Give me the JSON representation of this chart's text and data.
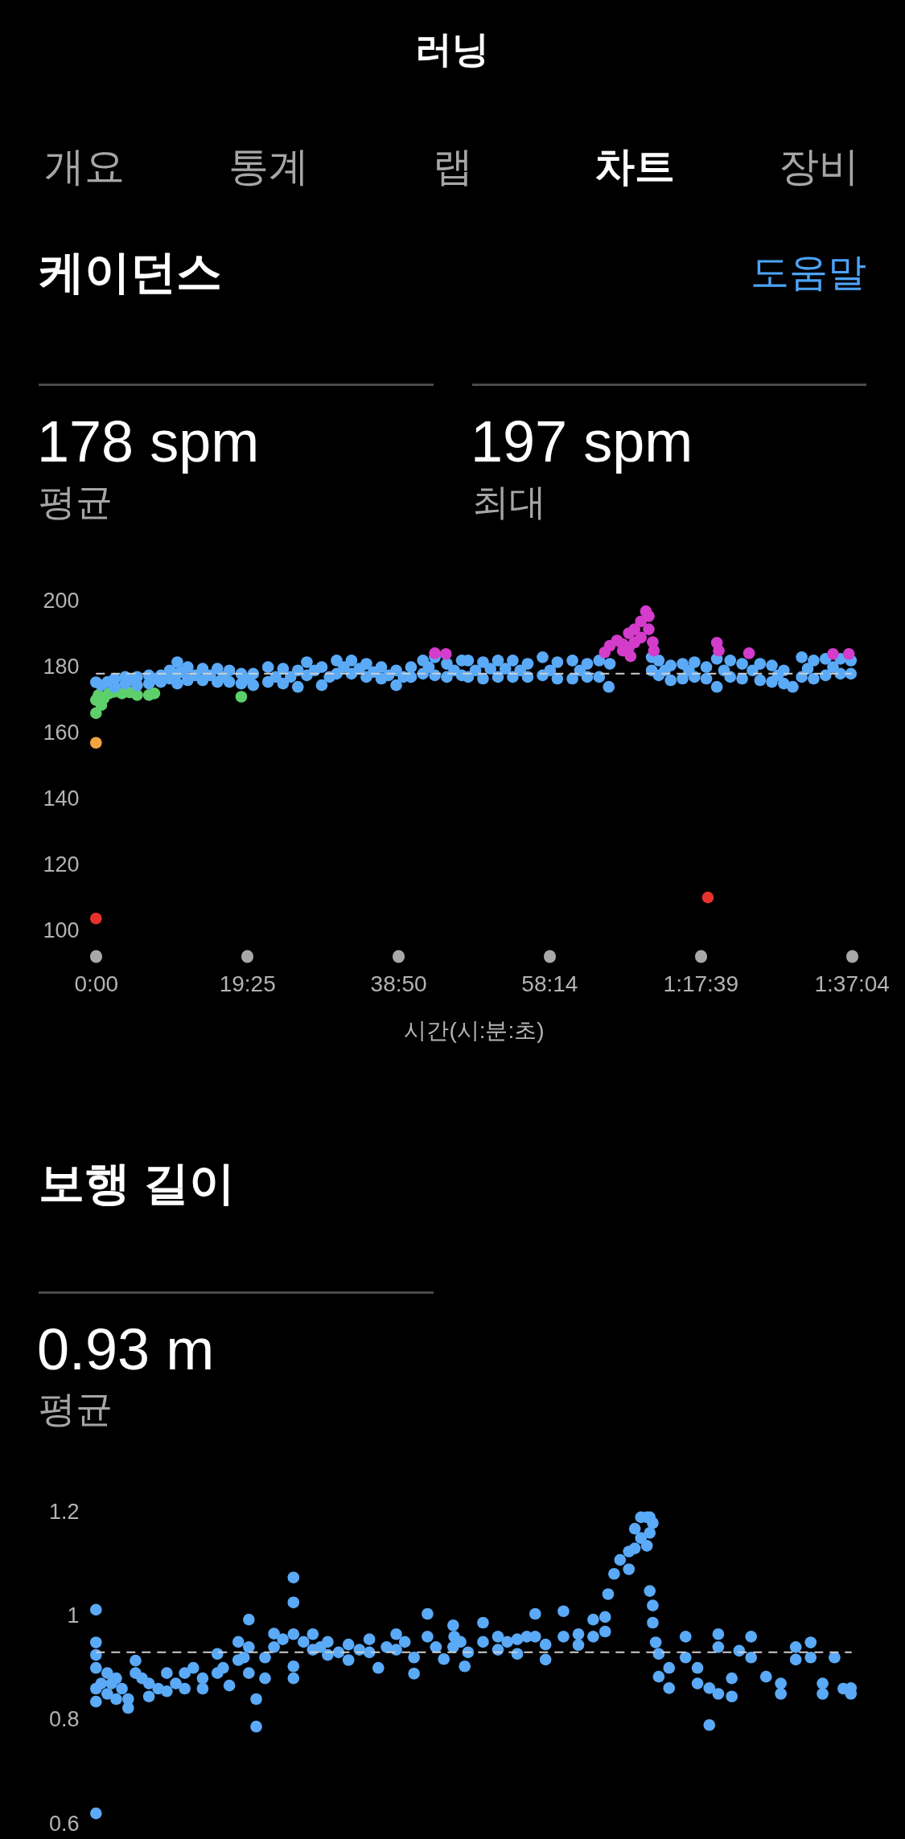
{
  "chart_data": [
    {
      "type": "other",
      "title": "러닝",
      "annotations": [
        "개요",
        "통계",
        "랩",
        "차트",
        "장비"
      ]
    },
    {
      "type": "scatter",
      "title": "케이던스",
      "annotations": [
        "도움말",
        "178 spm",
        "평균",
        "197 spm",
        "최대"
      ],
      "xlabel": "시간(시:분:초)",
      "xlim": [
        0,
        5824
      ],
      "xticks": [
        {
          "value": 0,
          "label": "0:00"
        },
        {
          "value": 1165,
          "label": "19:25"
        },
        {
          "value": 2330,
          "label": "38:50"
        },
        {
          "value": 3494,
          "label": "58:14"
        },
        {
          "value": 4659,
          "label": "1:17:39"
        },
        {
          "value": 5824,
          "label": "1:37:04"
        }
      ],
      "ylim": [
        100,
        200
      ],
      "yticks": [
        100,
        120,
        140,
        160,
        180,
        200
      ],
      "grid": false,
      "legend": false,
      "marker": "circle",
      "ref_lines": [
        {
          "axis": "y",
          "value": 178,
          "color": "#cfcfcf",
          "line_style": "dashed"
        }
      ],
      "series": [
        {
          "color": "#5dcf6b",
          "x": [
            0,
            0,
            20,
            41,
            60,
            100,
            140,
            200,
            260,
            317,
            408,
            450,
            1120
          ],
          "values": [
            166,
            170,
            171.5,
            168.5,
            170.5,
            172,
            172.5,
            172,
            172.3,
            171.5,
            171.5,
            172,
            171
          ]
        },
        {
          "color": "#f5a340",
          "x": [
            0
          ],
          "values": [
            157
          ]
        },
        {
          "color": "#e5322d",
          "x": [
            0,
            4716
          ],
          "values": [
            103.6,
            110
          ]
        },
        {
          "color": "#5aaaf8",
          "x": [
            0,
            41,
            144,
            144,
            225,
            225,
            317,
            317,
            408,
            408,
            500,
            500,
            569,
            569,
            627,
            627,
            627,
            707,
            707,
            822,
            822,
            936,
            936,
            1028,
            1028,
            1120,
            1120,
            1212,
            1212,
            1326,
            1326,
            1442,
            1442,
            1556,
            1556,
            1625,
            1625,
            1740,
            1740,
            1855,
            1855,
            1969,
            1969,
            2084,
            2084,
            2199,
            2199,
            2314,
            2314,
            2428,
            2428,
            2520,
            2520,
            2612,
            2612,
            2704,
            2704,
            2819,
            2819,
            2868,
            2868,
            2983,
            2983,
            3098,
            3098,
            3212,
            3212,
            3327,
            3327,
            3442,
            3442,
            3556,
            3556,
            3672,
            3672,
            3786,
            3786,
            3878,
            3878,
            3952,
            3960,
            4283,
            4283,
            4337,
            4337,
            4429,
            4429,
            4521,
            4521,
            4613,
            4613,
            4704,
            4704,
            4785,
            4785,
            4888,
            4888,
            4980,
            4980,
            5118,
            5118,
            5209,
            5209,
            5301,
            5301,
            5370,
            5439,
            5439,
            5531,
            5531,
            5623,
            5623,
            5737,
            5737,
            5818,
            5818,
            90,
            270,
            455,
            665,
            765,
            880,
            980,
            1165,
            1385,
            1500,
            1685,
            1800,
            1910,
            2030,
            2140,
            2255,
            2370,
            2565,
            2760,
            2925,
            3040,
            3155,
            3270,
            3500,
            3730,
            4385,
            4570,
            4840,
            5060,
            5255,
            5485,
            5680
          ],
          "values": [
            175.4,
            174.5,
            176.5,
            174,
            177,
            175,
            177,
            174.5,
            177.5,
            175,
            177.5,
            175.5,
            179,
            176.5,
            181.5,
            178,
            175,
            180,
            176,
            179.5,
            176,
            179.5,
            175.5,
            179,
            175.5,
            178,
            175,
            178,
            174.5,
            180,
            175.5,
            179.5,
            175,
            179,
            174,
            181.5,
            177.5,
            180,
            174.5,
            182,
            178,
            182,
            178,
            181,
            177,
            180,
            176.5,
            179,
            174.5,
            180,
            177,
            182,
            178,
            183,
            177.5,
            181,
            177,
            182,
            177.5,
            182,
            177,
            181.5,
            176.5,
            182,
            177,
            182,
            177,
            181,
            177,
            183,
            177.5,
            181.5,
            176.5,
            182,
            176.5,
            181,
            177,
            182,
            177,
            174,
            181,
            183,
            179,
            182,
            177.5,
            180.5,
            176,
            181,
            176.5,
            181.5,
            177,
            180,
            176.5,
            182.5,
            174,
            182,
            177,
            181,
            176.5,
            181,
            176,
            180.5,
            175.5,
            179,
            175,
            174,
            183,
            177,
            182,
            176.5,
            182.5,
            177.5,
            182.5,
            178,
            182,
            178,
            175.5,
            176,
            176.5,
            178.5,
            177.5,
            177.5,
            177,
            176.5,
            177,
            177,
            179,
            177,
            180,
            179.5,
            178.5,
            177.5,
            177,
            180,
            179,
            179,
            179.5,
            179.5,
            179,
            179,
            179,
            179,
            179,
            179,
            179,
            177.5,
            179.5,
            180
          ]
        },
        {
          "color": "#d43ccb",
          "x": [
            2612,
            2697,
            3921,
            3960,
            4016,
            4060,
            4060,
            4107,
            4107,
            4120,
            4150,
            4150,
            4200,
            4200,
            4238,
            4260,
            4260,
            4291,
            4300,
            4785,
            4800,
            5033,
            5680,
            5802
          ],
          "values": [
            184.2,
            184,
            184.5,
            186.5,
            188.1,
            187,
            185,
            190.3,
            186,
            183.3,
            191.5,
            187.5,
            193.9,
            189,
            197,
            195.5,
            191.5,
            187.6,
            185,
            187.4,
            185,
            184.2,
            184,
            184
          ]
        }
      ]
    },
    {
      "type": "scatter",
      "title": "보행 길이",
      "annotations": [
        "0.93 m",
        "평균"
      ],
      "xlim": [
        0,
        5824
      ],
      "ylim": [
        0.6,
        1.2
      ],
      "yticks": [
        0.6,
        0.8,
        1,
        1.2
      ],
      "tick_labels": "y",
      "grid": false,
      "legend": false,
      "marker": "circle",
      "ref_lines": [
        {
          "axis": "y",
          "value": 0.93,
          "color": "#cfcfcf",
          "line_style": "dashed"
        }
      ],
      "series": [
        {
          "color": "#5aaaf8",
          "x": [
            0,
            0,
            0,
            0,
            0,
            0,
            0,
            87,
            87,
            156,
            156,
            248,
            248,
            305,
            305,
            408,
            408,
            546,
            546,
            684,
            684,
            822,
            822,
            936,
            936,
            1028,
            1097,
            1097,
            1178,
            1178,
            1178,
            1235,
            1235,
            1303,
            1303,
            1372,
            1372,
            1522,
            1522,
            1522,
            1522,
            1522,
            1671,
            1671,
            1786,
            1786,
            1946,
            1946,
            2107,
            2107,
            2176,
            2314,
            2314,
            2451,
            2451,
            2555,
            2555,
            2681,
            2761,
            2842,
            2753,
            2753,
            2868,
            2983,
            2983,
            3098,
            3098,
            3247,
            3247,
            3385,
            3385,
            3465,
            3465,
            3603,
            3603,
            3718,
            3718,
            3832,
            3832,
            3924,
            3924,
            3947,
            3993,
            4039,
            4107,
            4107,
            4153,
            4153,
            4200,
            4200,
            4246,
            4246,
            4268,
            4268,
            4291,
            4268,
            4291,
            4291,
            4314,
            4337,
            4337,
            4417,
            4417,
            4544,
            4544,
            4636,
            4636,
            4727,
            4727,
            4796,
            4796,
            4796,
            4900,
            4900,
            4957,
            5049,
            5049,
            5164,
            5278,
            5278,
            5393,
            5393,
            5508,
            5508,
            5600,
            5600,
            5692,
            5760,
            5818,
            5818,
            40,
            120,
            200,
            355,
            480,
            615,
            750,
            980,
            1140,
            1440,
            1600,
            1730,
            1870,
            2030,
            2240,
            2380,
            2620,
            2810,
            3170,
            3320
          ],
          "values": [
            1.012,
            0.949,
            0.925,
            0.9,
            0.86,
            0.835,
            0.62,
            0.89,
            0.85,
            0.88,
            0.84,
            0.84,
            0.823,
            0.914,
            0.89,
            0.87,
            0.845,
            0.89,
            0.855,
            0.89,
            0.86,
            0.88,
            0.86,
            0.927,
            0.89,
            0.866,
            0.95,
            0.915,
            0.993,
            0.94,
            0.89,
            0.84,
            0.787,
            0.92,
            0.88,
            0.966,
            0.94,
            1.074,
            1.026,
            0.965,
            0.903,
            0.88,
            0.965,
            0.935,
            0.95,
            0.925,
            0.945,
            0.915,
            0.955,
            0.93,
            0.9,
            0.965,
            0.935,
            0.889,
            0.92,
            1.004,
            0.96,
            0.917,
            0.96,
            0.903,
            0.982,
            0.94,
            0.93,
            0.987,
            0.95,
            0.96,
            0.935,
            0.927,
            0.955,
            1.004,
            0.96,
            0.916,
            0.945,
            1.009,
            0.96,
            0.944,
            0.965,
            0.993,
            0.96,
            0.998,
            0.97,
            1.042,
            1.081,
            1.108,
            1.124,
            1.09,
            1.168,
            1.13,
            1.19,
            1.15,
            1.135,
            1.19,
            1.19,
            1.16,
            1.179,
            1.048,
            1.02,
            0.987,
            0.949,
            0.927,
            0.883,
            0.861,
            0.9,
            0.96,
            0.92,
            0.9,
            0.87,
            0.861,
            0.79,
            0.965,
            0.94,
            0.85,
            0.845,
            0.88,
            0.933,
            0.96,
            0.92,
            0.883,
            0.85,
            0.87,
            0.916,
            0.94,
            0.949,
            0.92,
            0.85,
            0.87,
            0.92,
            0.86,
            0.861,
            0.85,
            0.87,
            0.87,
            0.86,
            0.88,
            0.86,
            0.87,
            0.9,
            0.9,
            0.92,
            0.955,
            0.95,
            0.94,
            0.93,
            0.935,
            0.94,
            0.95,
            0.94,
            0.95,
            0.95,
            0.96
          ]
        }
      ]
    }
  ]
}
